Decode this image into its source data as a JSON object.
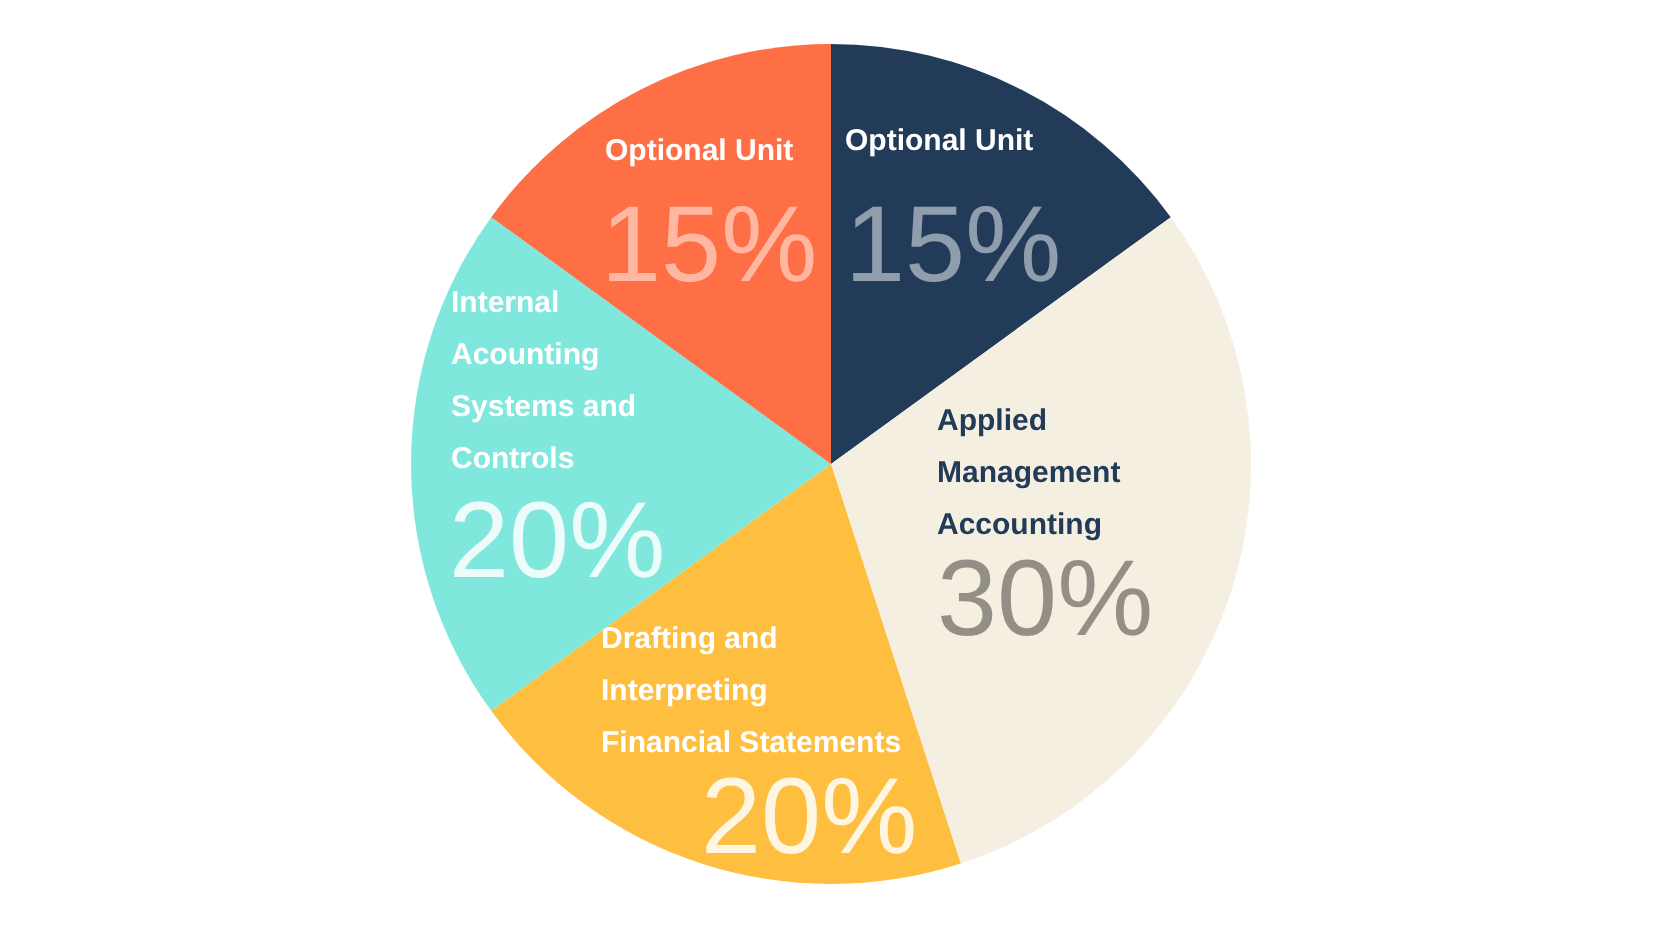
{
  "chart_data": {
    "type": "pie",
    "categories": [
      "Optional Unit",
      "Applied Management Accounting",
      "Drafting and Interpreting Financial Statements",
      "Internal Acounting Systems and Controls",
      "Optional Unit"
    ],
    "values": [
      15,
      30,
      20,
      20,
      15
    ],
    "colors": [
      "#213b58",
      "#f5efe1",
      "#febf40",
      "#80e7dc",
      "#fe6f45"
    ],
    "value_labels": [
      "15%",
      "30%",
      "20%",
      "20%",
      "15%"
    ]
  }
}
